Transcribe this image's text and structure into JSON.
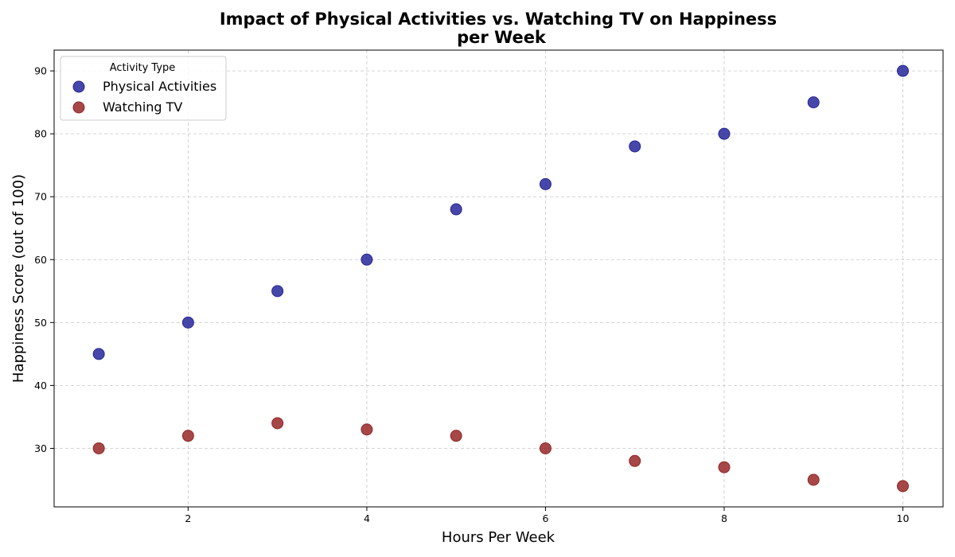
{
  "chart_data": {
    "type": "scatter",
    "title_lines": [
      "Impact of Physical Activities vs. Watching TV on Happiness",
      "per Week"
    ],
    "xlabel": "Hours Per Week",
    "ylabel": "Happiness Score (out of 100)",
    "xlim": [
      0.5,
      10.45
    ],
    "ylim": [
      20.7,
      93.3
    ],
    "xticks": [
      2,
      4,
      6,
      8,
      10
    ],
    "yticks": [
      30,
      40,
      50,
      60,
      70,
      80,
      90
    ],
    "grid": true,
    "legend": {
      "title": "Activity Type",
      "placement": "upper-left"
    },
    "series": [
      {
        "name": "Physical Activities",
        "color": "#27279a",
        "x": [
          1,
          2,
          3,
          4,
          5,
          6,
          7,
          8,
          9,
          10
        ],
        "y": [
          45,
          50,
          55,
          60,
          68,
          72,
          78,
          80,
          85,
          90
        ]
      },
      {
        "name": "Watching TV",
        "color": "#962728",
        "x": [
          1,
          2,
          3,
          4,
          5,
          6,
          7,
          8,
          9,
          10
        ],
        "y": [
          30,
          32,
          34,
          33,
          32,
          30,
          28,
          27,
          25,
          24
        ]
      }
    ]
  }
}
